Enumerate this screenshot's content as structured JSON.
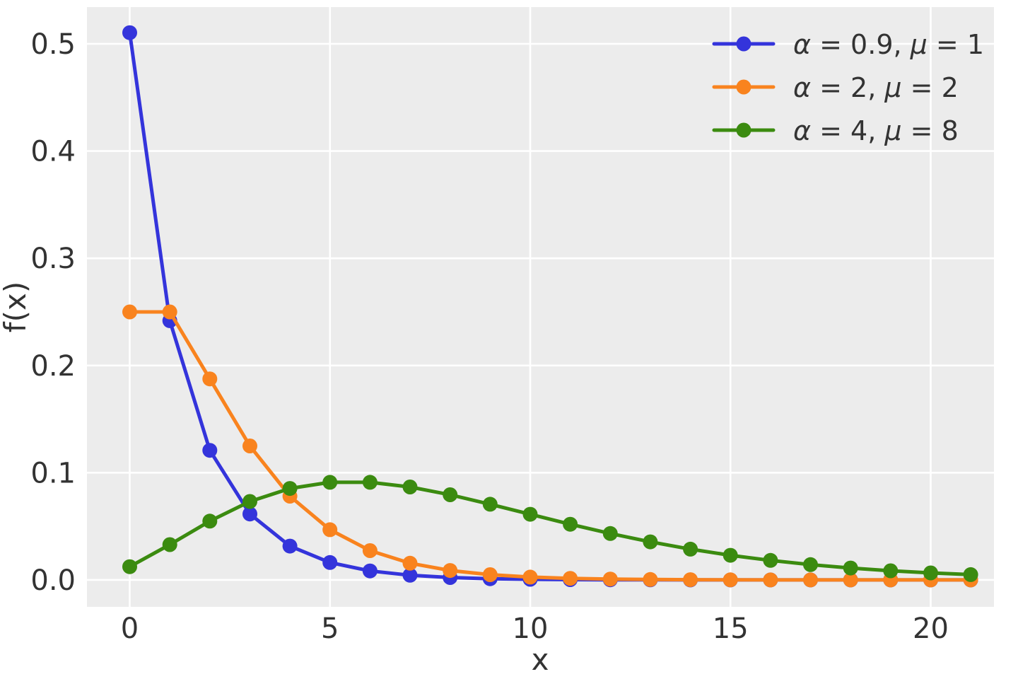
{
  "figure": {
    "background": "#ffffff"
  },
  "chart_data": {
    "type": "line",
    "title": "",
    "xlabel": "x",
    "ylabel": "f(x)",
    "grid": true,
    "legend_position": "upper right",
    "xlim": [
      -1.068,
      21.58
    ],
    "ylim": [
      -0.0251,
      0.5343
    ],
    "xticks": [
      0,
      5,
      10,
      15,
      20
    ],
    "xtick_labels": [
      "0",
      "5",
      "10",
      "15",
      "20"
    ],
    "yticks": [
      0.0,
      0.1,
      0.2,
      0.3,
      0.4,
      0.5
    ],
    "ytick_labels": [
      "0.0",
      "0.1",
      "0.2",
      "0.3",
      "0.4",
      "0.5"
    ],
    "x": [
      0,
      1,
      2,
      3,
      4,
      5,
      6,
      7,
      8,
      9,
      10,
      11,
      12,
      13,
      14,
      15,
      16,
      17,
      18,
      19,
      20,
      21
    ],
    "series": [
      {
        "name": "nb-alpha-0.9-mu-1",
        "label": "α = 0.9, μ = 1",
        "alpha": "0.9",
        "mu": "1",
        "color": "#3434DB",
        "values": [
          0.510435,
          0.241785,
          0.120892,
          0.061507,
          0.031563,
          0.01628,
          0.008426,
          0.004371,
          0.002272,
          0.001183,
          0.000616,
          0.000321,
          0.000168,
          8.75e-05,
          4.57e-05,
          2.39e-05,
          1.25e-05,
          6.5e-06,
          3.4e-06,
          1.8e-06,
          9e-07,
          5e-07
        ]
      },
      {
        "name": "nb-alpha-2-mu-2",
        "label": "α = 2, μ = 2",
        "alpha": "2",
        "mu": "2",
        "color": "#F9831E",
        "values": [
          0.25,
          0.25,
          0.1875,
          0.125,
          0.078125,
          0.046875,
          0.027344,
          0.015625,
          0.008789,
          0.004883,
          0.002686,
          0.001465,
          0.000793,
          0.000427,
          0.000229,
          0.000122,
          6.5e-05,
          3.4e-05,
          1.8e-05,
          9.5e-06,
          5e-06,
          2.6e-06
        ]
      },
      {
        "name": "nb-alpha-4-mu-8",
        "label": "α = 4, μ = 8",
        "alpha": "4",
        "mu": "8",
        "color": "#3B8B10",
        "values": [
          0.012346,
          0.032922,
          0.05487,
          0.073159,
          0.085352,
          0.091042,
          0.091042,
          0.086707,
          0.079482,
          0.07065,
          0.061233,
          0.051963,
          0.043302,
          0.035525,
          0.028756,
          0.023005,
          0.018213,
          0.014285,
          0.01111,
          0.008576,
          0.006575,
          0.00501
        ]
      }
    ],
    "legend": {
      "alpha_symbol": "α",
      "mu_symbol": "μ",
      "equals": " = ",
      "separator": ", "
    },
    "style": {
      "plot_bg": "#ECECEC",
      "grid_color": "#FFFFFF",
      "text_color": "#333333",
      "line_width": 5,
      "marker_radius": 10.5
    }
  }
}
